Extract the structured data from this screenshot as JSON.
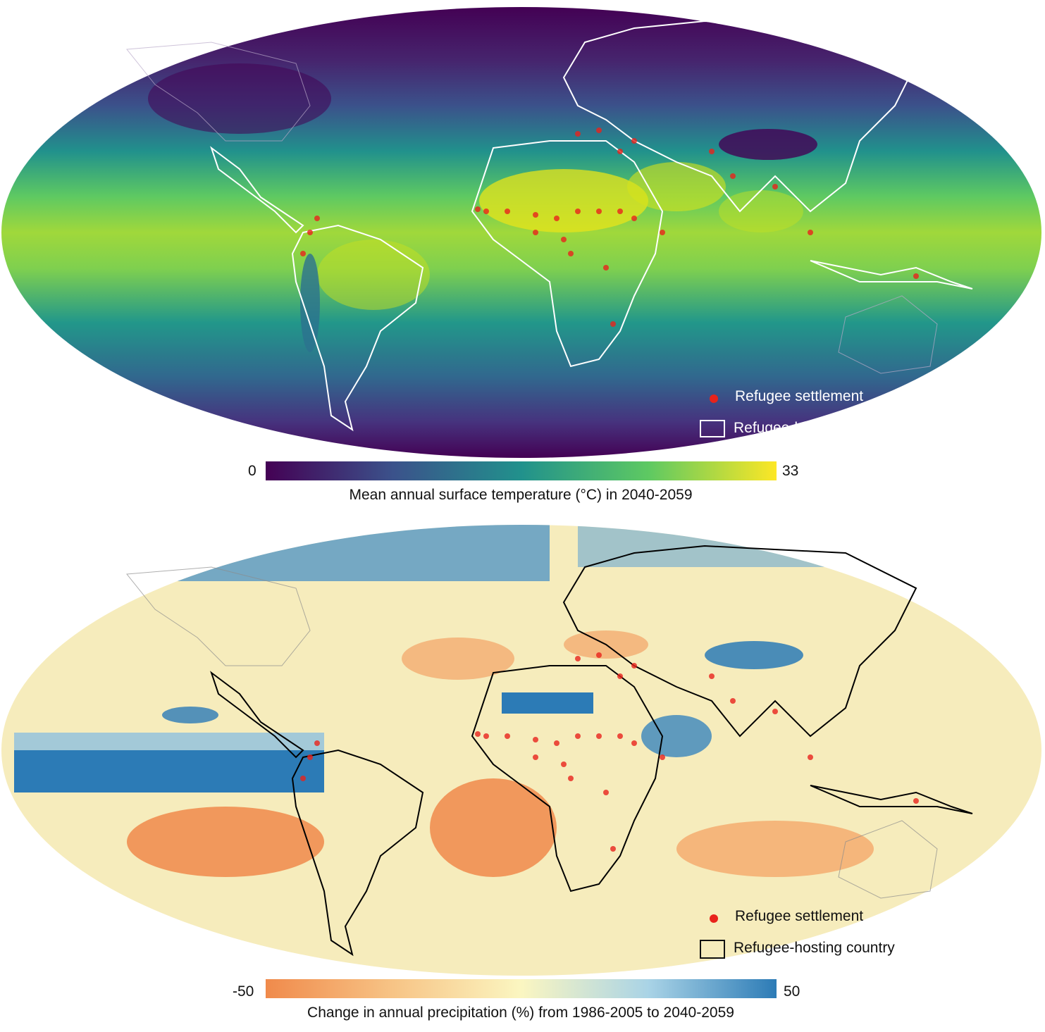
{
  "maps": [
    {
      "legend": {
        "settlement_label": "Refugee settlement",
        "country_label": "Refugee-hosting country"
      },
      "colorbar": {
        "min_label": "0",
        "max_label": "33",
        "title": "Mean annual surface temperature (°C) in 2040-2059",
        "colors": [
          "#440154",
          "#3b528b",
          "#21918c",
          "#5ec962",
          "#fde725"
        ]
      }
    },
    {
      "legend": {
        "settlement_label": "Refugee settlement",
        "country_label": "Refugee-hosting country"
      },
      "colorbar": {
        "min_label": "-50",
        "max_label": "50",
        "title": "Change in annual precipitation (%) from 1986-2005 to 2040-2059",
        "colors": [
          "#f08a4b",
          "#f7c486",
          "#fbf6c1",
          "#a9d3e6",
          "#2c7bb6"
        ]
      }
    }
  ],
  "colors": {
    "settlement": "#e8231b",
    "border_top": "#ffffff",
    "border_bottom": "#000000"
  }
}
